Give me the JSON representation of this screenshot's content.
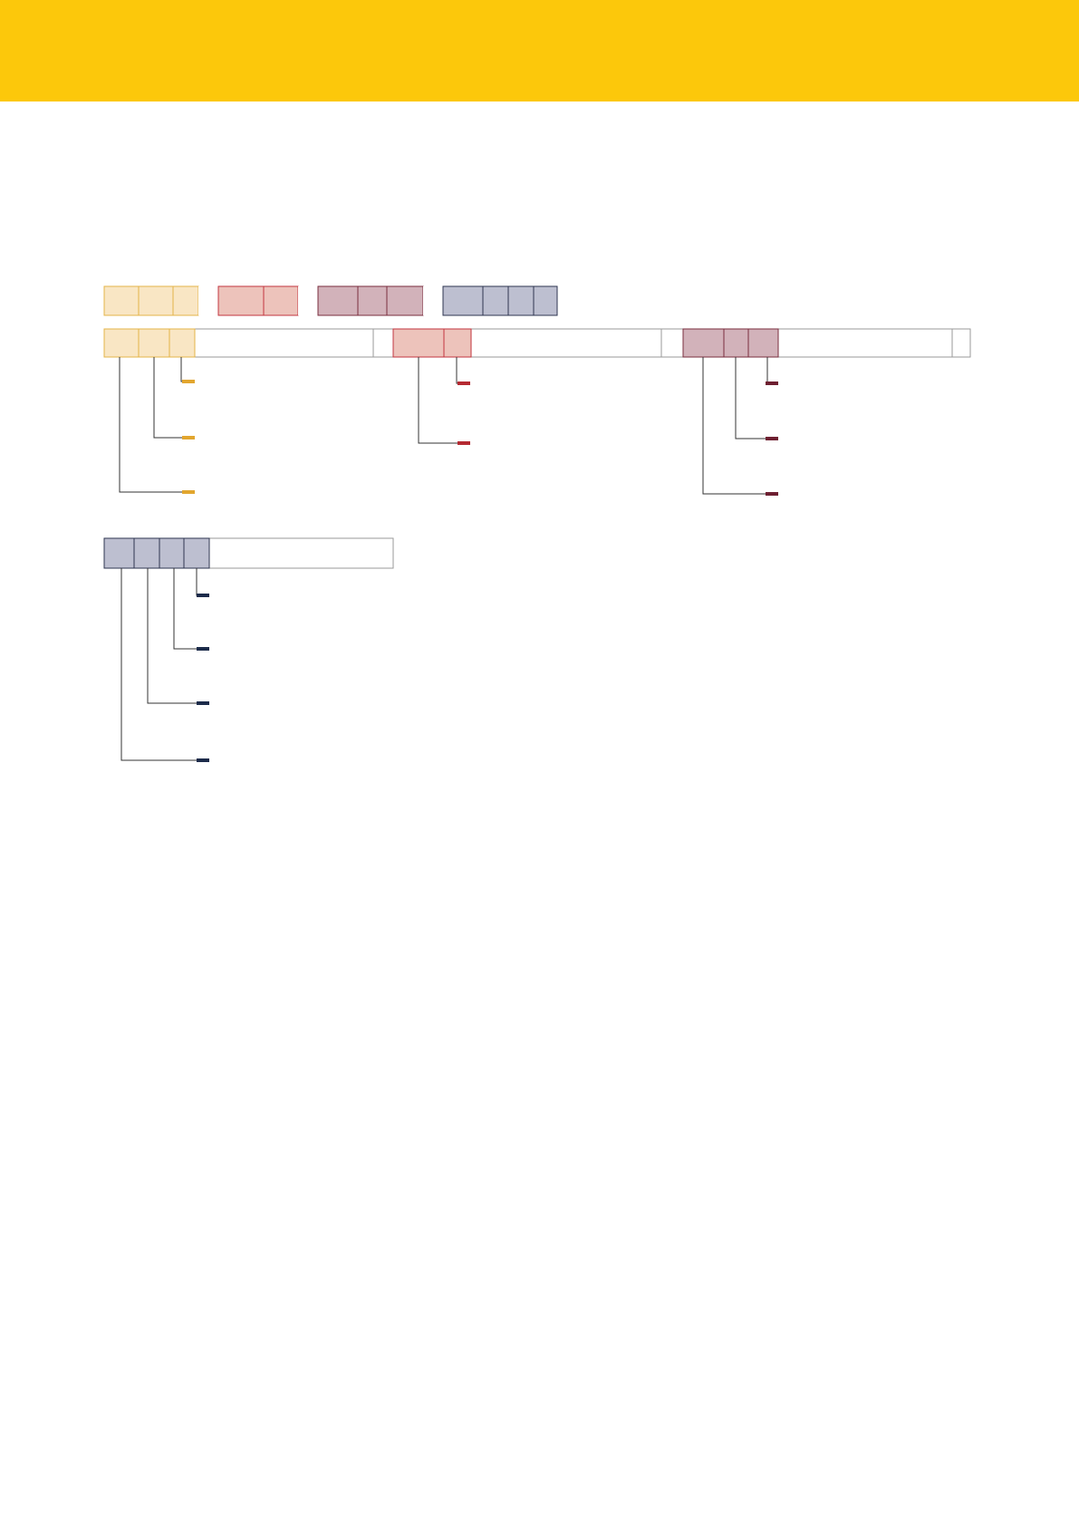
{
  "colors": {
    "header": "#FCC80B",
    "yellow_fill": "#F9E6C4",
    "yellow_stroke": "#E4B448",
    "yellow_marker": "#E2A62E",
    "red_fill": "#EDC3BB",
    "red_stroke": "#C2363F",
    "red_marker": "#B52A32",
    "mauve_fill": "#D2B2BA",
    "mauve_stroke": "#7A2D3E",
    "mauve_marker": "#6E1F31",
    "slate_fill": "#BDBFD0",
    "slate_stroke": "#2E3550",
    "slate_marker": "#1C2B4A",
    "outline": "#9A9A9A",
    "connector": "#333333"
  },
  "icons": {
    "connector_marker": "short-horizontal-bar"
  }
}
